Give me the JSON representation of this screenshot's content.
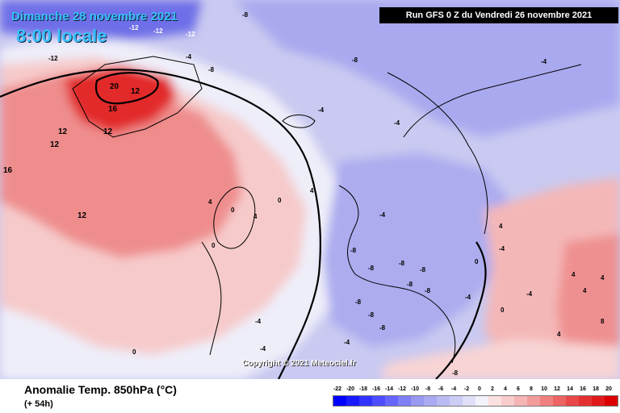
{
  "header": {
    "date": "Dimanche 28 novembre 2021",
    "time": "8:00 locale",
    "run": "Run GFS 0 Z du Vendredi 26 novembre 2021"
  },
  "copyright": "Copyright © 2021 Meteociel.fr",
  "footer": {
    "title": "Anomalie Temp. 850hPa (°C)",
    "subtitle": "(+ 54h)"
  },
  "colors": {
    "cold_strong": "#2a2ad8",
    "cold_mid": "#8c8ce8",
    "cold_light": "#c6c6f0",
    "neutral": "#f4f4fb",
    "warm_light": "#f7c9c9",
    "warm_mid": "#ef8080",
    "warm_strong": "#e02020"
  },
  "scale": {
    "ticks": [
      "-22",
      "-20",
      "-18",
      "-16",
      "-14",
      "-12",
      "-10",
      "-8",
      "-6",
      "-4",
      "-2",
      "0",
      "2",
      "4",
      "6",
      "8",
      "10",
      "12",
      "14",
      "16",
      "18",
      "20"
    ],
    "colors": [
      "#0000ff",
      "#1a1aff",
      "#3333ff",
      "#4d4dff",
      "#6666ff",
      "#7f7ff7",
      "#9999f2",
      "#aaaaf2",
      "#bbbbf3",
      "#cccdf5",
      "#dfdff8",
      "#f2f2fb",
      "#fbe0e0",
      "#f8cccc",
      "#f5b5b5",
      "#f39c9c",
      "#f08080",
      "#ec6464",
      "#e84848",
      "#e43030",
      "#e01a1a",
      "#dd0000"
    ]
  },
  "labels": [
    {
      "text": "-12"
    },
    {
      "text": "-12"
    },
    {
      "text": "-12"
    },
    {
      "text": "-8"
    },
    {
      "text": "-8"
    },
    {
      "text": "-4"
    },
    {
      "text": "-12"
    },
    {
      "text": "-8"
    },
    {
      "text": "-4"
    },
    {
      "text": "-4"
    },
    {
      "text": "-4"
    },
    {
      "text": "-4"
    },
    {
      "text": "20"
    },
    {
      "text": "16"
    },
    {
      "text": "12"
    },
    {
      "text": "12"
    },
    {
      "text": "12"
    },
    {
      "text": "12"
    },
    {
      "text": "16"
    },
    {
      "text": "12"
    },
    {
      "text": "4"
    },
    {
      "text": "4"
    },
    {
      "text": "0"
    },
    {
      "text": "4"
    },
    {
      "text": "0"
    },
    {
      "text": "0"
    },
    {
      "text": "0"
    },
    {
      "text": "-4"
    },
    {
      "text": "-4"
    },
    {
      "text": "-4"
    },
    {
      "text": "-8"
    },
    {
      "text": "-8"
    },
    {
      "text": "-8"
    },
    {
      "text": "-8"
    },
    {
      "text": "-8"
    },
    {
      "text": "-8"
    },
    {
      "text": "-8"
    },
    {
      "text": "-8"
    },
    {
      "text": "-8"
    },
    {
      "text": "-4"
    },
    {
      "text": "-4"
    },
    {
      "text": "0"
    },
    {
      "text": "4"
    },
    {
      "text": "4"
    },
    {
      "text": "4"
    },
    {
      "text": "4"
    },
    {
      "text": "8"
    },
    {
      "text": "0"
    },
    {
      "text": "-8"
    },
    {
      "text": "-4"
    },
    {
      "text": "-4"
    },
    {
      "text": "4"
    }
  ]
}
